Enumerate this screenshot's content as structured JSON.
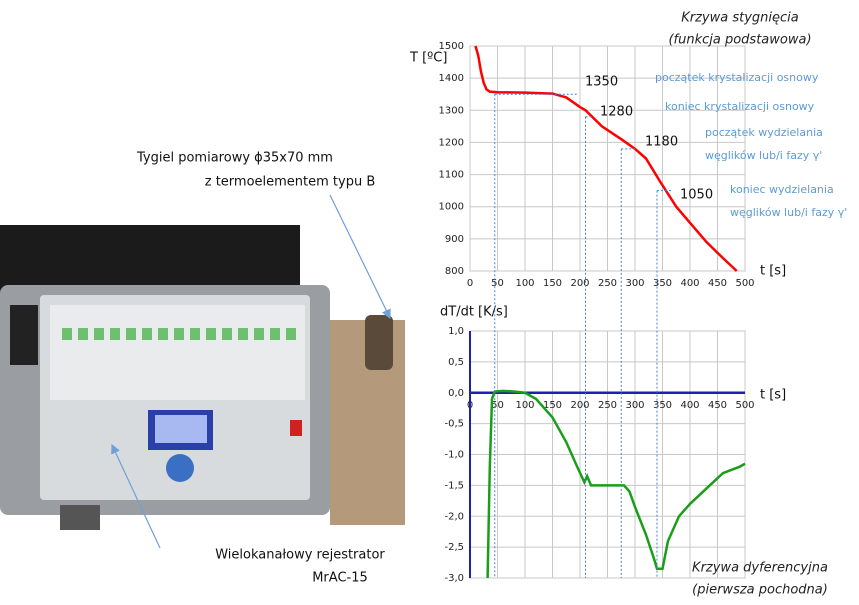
{
  "photo_labels": {
    "crucible": [
      "Tygiel pomiarowy ϕ35x70 mm",
      "z termoelementem typu B"
    ],
    "recorder": [
      "Wielokanałowy rejestrator",
      "MrAC-15"
    ]
  },
  "chart_data": [
    {
      "type": "line",
      "title": "Krzywa stygnięcia",
      "subtitle": "(funkcja podstawowa)",
      "y_label": "T [ºC]",
      "x_label": "t [s]",
      "color": "#ff0000",
      "grid": true,
      "xlim": [
        0,
        500
      ],
      "xticks": [
        0,
        50,
        100,
        150,
        200,
        250,
        300,
        350,
        400,
        450,
        500
      ],
      "ylim": [
        800,
        1500
      ],
      "yticks": [
        800,
        900,
        1000,
        1100,
        1200,
        1300,
        1400,
        1500
      ],
      "x": [
        10,
        15,
        20,
        25,
        30,
        36,
        50,
        100,
        150,
        175,
        200,
        210,
        240,
        275,
        300,
        320,
        345,
        375,
        400,
        430,
        460,
        485
      ],
      "values": [
        1500,
        1470,
        1420,
        1385,
        1365,
        1358,
        1356,
        1355,
        1352,
        1340,
        1310,
        1300,
        1250,
        1210,
        1180,
        1150,
        1080,
        1000,
        950,
        890,
        840,
        800
      ],
      "annotations": [
        {
          "x": 45,
          "value": 1350,
          "text": [
            "początek krystalizacji osnowy"
          ]
        },
        {
          "x": 210,
          "value": 1280,
          "text": [
            "koniec krystalizacji osnowy"
          ]
        },
        {
          "x": 275,
          "value": 1180,
          "text": [
            "początek wydzielania",
            "węglików lub/i fazy γ'"
          ]
        },
        {
          "x": 340,
          "value": 1050,
          "text": [
            "koniec wydzielania",
            "węglików lub/i fazy γ'"
          ]
        }
      ]
    },
    {
      "type": "line",
      "title": "Krzywa dyferencyjna",
      "subtitle": "(pierwsza pochodna)",
      "y_label": "dT/dt [K/s]",
      "x_label": "t [s]",
      "color": "#1a9e1a",
      "grid": true,
      "xlim": [
        0,
        500
      ],
      "xticks": [
        0,
        50,
        100,
        150,
        200,
        250,
        300,
        350,
        400,
        450,
        500
      ],
      "ylim": [
        -3,
        1
      ],
      "yticks": [
        {
          "value": -3,
          "label": "-3,0"
        },
        {
          "value": -2.5,
          "label": "-2,5"
        },
        {
          "value": -2,
          "label": "-2,0"
        },
        {
          "value": -1.5,
          "label": "-1,5"
        },
        {
          "value": -1,
          "label": "-1,0"
        },
        {
          "value": -0.5,
          "label": "-0,5"
        },
        {
          "value": 0,
          "label": "0,0"
        },
        {
          "value": 0.5,
          "label": "0,5"
        },
        {
          "value": 1,
          "label": "1,0"
        }
      ],
      "x": [
        32,
        36,
        40,
        45,
        60,
        80,
        100,
        120,
        150,
        175,
        195,
        208,
        213,
        220,
        250,
        280,
        290,
        300,
        320,
        335,
        340,
        350,
        360,
        380,
        400,
        430,
        460,
        490,
        500
      ],
      "values": [
        -3,
        -1.2,
        -0.1,
        0.02,
        0.03,
        0.02,
        0.0,
        -0.1,
        -0.4,
        -0.8,
        -1.2,
        -1.45,
        -1.35,
        -1.5,
        -1.5,
        -1.5,
        -1.6,
        -1.85,
        -2.3,
        -2.7,
        -2.85,
        -2.85,
        -2.4,
        -2.0,
        -1.8,
        -1.55,
        -1.3,
        -1.2,
        -1.15
      ]
    }
  ]
}
